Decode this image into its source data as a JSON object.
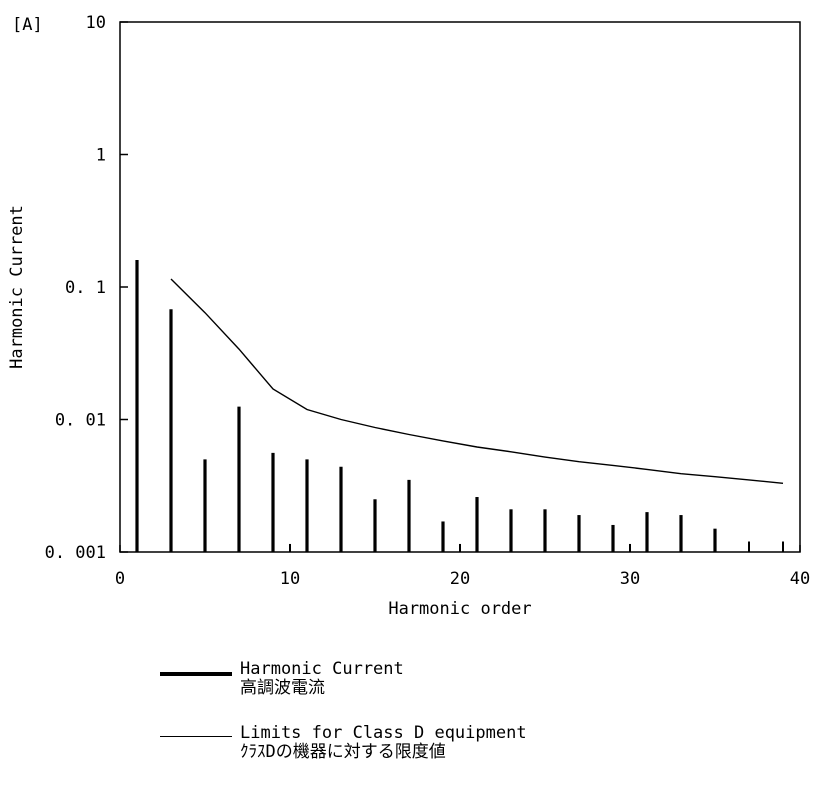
{
  "chart_data": {
    "type": "bar",
    "xlabel": "Harmonic order",
    "ylabel": "Harmonic Current",
    "y_unit_label": "[A]",
    "y_scale": "log",
    "xlim": [
      0,
      40
    ],
    "ylim": [
      0.001,
      10
    ],
    "x_ticks": [
      0,
      10,
      20,
      30,
      40
    ],
    "x_tick_labels": [
      "0",
      "10",
      "20",
      "30",
      "40"
    ],
    "y_ticks": [
      0.001,
      0.01,
      0.1,
      1,
      10
    ],
    "y_tick_labels": [
      "0. 001",
      "0. 01",
      "0. 1",
      "1",
      "10"
    ],
    "grid": false,
    "legend_position": "bottom",
    "series": [
      {
        "name": "Harmonic Current",
        "name_ja": "高調波電流",
        "type": "bar",
        "x": [
          1,
          3,
          5,
          7,
          9,
          10,
          11,
          13,
          15,
          17,
          19,
          20,
          21,
          23,
          25,
          27,
          29,
          30,
          31,
          33,
          35,
          37,
          39
        ],
        "values": [
          0.16,
          0.068,
          0.005,
          0.0125,
          0.0056,
          0.00115,
          0.005,
          0.0044,
          0.0025,
          0.0035,
          0.0017,
          0.00115,
          0.0026,
          0.0021,
          0.0021,
          0.0019,
          0.0016,
          0.00115,
          0.002,
          0.0019,
          0.0015,
          0.0012,
          0.0012
        ]
      },
      {
        "name": "Limits for Class D equipment",
        "name_ja": "ｸﾗｽDの機器に対する限度値",
        "type": "line",
        "x": [
          3,
          5,
          7,
          9,
          11,
          13,
          15,
          17,
          19,
          21,
          23,
          25,
          27,
          29,
          31,
          33,
          35,
          37,
          39
        ],
        "values": [
          0.115,
          0.064,
          0.034,
          0.017,
          0.0119,
          0.01,
          0.0087,
          0.0077,
          0.0069,
          0.0062,
          0.0057,
          0.0052,
          0.0048,
          0.0045,
          0.0042,
          0.0039,
          0.0037,
          0.0035,
          0.0033
        ]
      }
    ]
  },
  "colors": {
    "ink": "#000000",
    "background": "#ffffff"
  }
}
